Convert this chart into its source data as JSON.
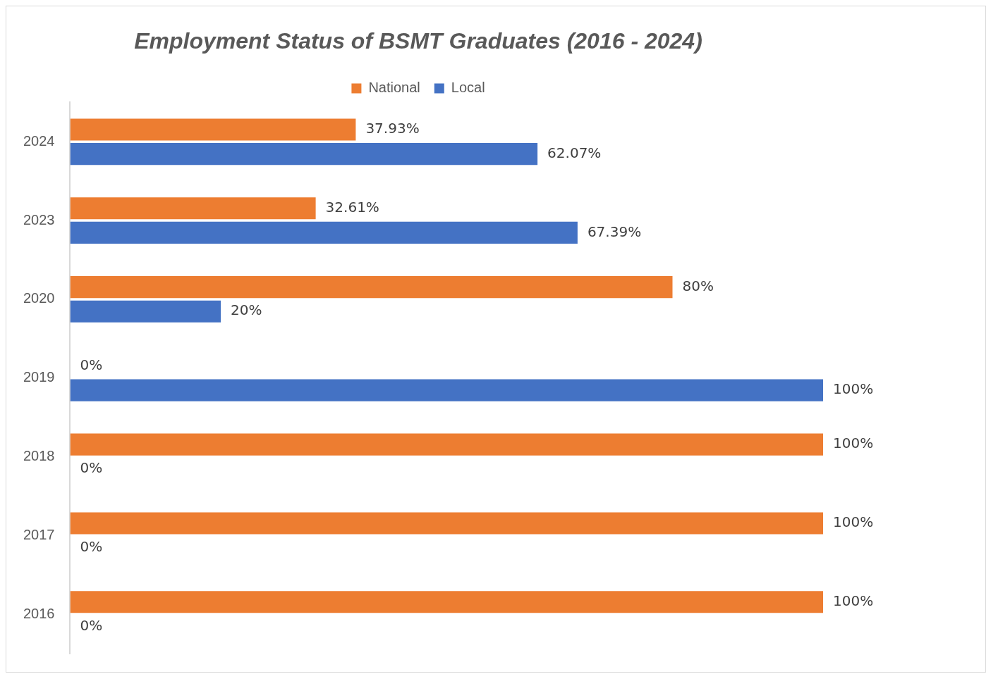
{
  "chart_data": {
    "type": "bar",
    "orientation": "horizontal",
    "title": "Employment Status of BSMT Graduates (2016 - 2024)",
    "categories": [
      "2024",
      "2023",
      "2020",
      "2019",
      "2018",
      "2017",
      "2016"
    ],
    "series": [
      {
        "name": "National",
        "color": "#ed7d31",
        "values": [
          37.93,
          32.61,
          80,
          0,
          100,
          100,
          100
        ],
        "value_labels": [
          "37.93%",
          "32.61%",
          "80%",
          "0%",
          "100%",
          "100%",
          "100%"
        ]
      },
      {
        "name": "Local",
        "color": "#4472c4",
        "values": [
          62.07,
          67.39,
          20,
          100,
          0,
          0,
          0
        ],
        "value_labels": [
          "62.07%",
          "67.39%",
          "20%",
          "100%",
          "0%",
          "0%",
          "0%"
        ]
      }
    ],
    "legend": "top",
    "grid": false,
    "tick_labels": "y"
  }
}
